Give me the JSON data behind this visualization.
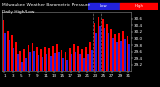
{
  "title": "Milwaukee Weather Barometric Pressure",
  "subtitle": "Daily High/Low",
  "bar_width": 0.42,
  "legend_high": "High",
  "legend_low": "Low",
  "color_high": "#ff0000",
  "color_low": "#2222dd",
  "plot_bg": "#000000",
  "fig_bg": "#000000",
  "text_color": "#ffffff",
  "ylim": [
    29.0,
    30.8
  ],
  "yticks": [
    29.2,
    29.4,
    29.6,
    29.8,
    30.0,
    30.2,
    30.4,
    30.6
  ],
  "vline_positions": [
    21.5,
    23.5
  ],
  "days": [
    1,
    2,
    3,
    4,
    5,
    6,
    7,
    8,
    9,
    10,
    11,
    12,
    13,
    14,
    15,
    16,
    17,
    18,
    19,
    20,
    21,
    22,
    23,
    24,
    25,
    26,
    27,
    28,
    29,
    30,
    31
  ],
  "highs": [
    30.55,
    30.22,
    30.1,
    29.9,
    29.62,
    29.68,
    29.8,
    29.85,
    29.75,
    29.68,
    29.75,
    29.72,
    29.78,
    29.82,
    29.65,
    29.6,
    29.72,
    29.82,
    29.78,
    29.68,
    29.75,
    29.88,
    30.48,
    30.65,
    30.58,
    30.44,
    30.28,
    30.15,
    30.18,
    30.22,
    30.08
  ],
  "lows": [
    30.18,
    29.95,
    29.72,
    29.52,
    29.28,
    29.42,
    29.58,
    29.62,
    29.5,
    29.44,
    29.52,
    29.48,
    29.55,
    29.6,
    29.4,
    29.35,
    29.52,
    29.6,
    29.52,
    29.42,
    29.52,
    29.65,
    30.18,
    30.38,
    30.32,
    30.18,
    30.02,
    29.88,
    29.92,
    29.98,
    29.82
  ]
}
